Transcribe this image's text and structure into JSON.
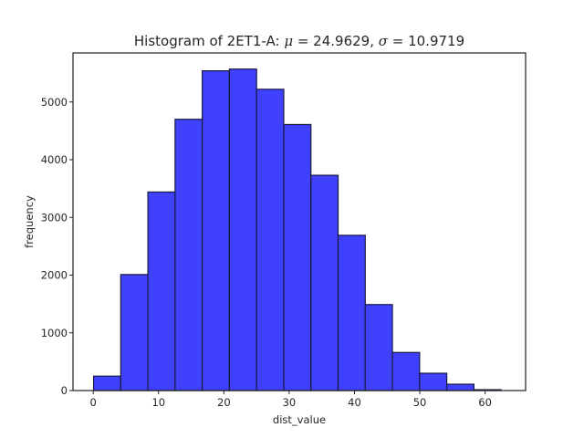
{
  "chart_data": {
    "type": "bar",
    "title": {
      "prefix": "Histogram of 2ET1-A: ",
      "mu_symbol": "μ",
      "mu_value": " = 24.9629, ",
      "sigma_symbol": "σ",
      "sigma_value": " = 10.9719"
    },
    "xlabel": "dist_value",
    "ylabel": "frequency",
    "xlim": [
      -3.1,
      66.2
    ],
    "ylim": [
      0,
      5850
    ],
    "xticks": [
      0,
      10,
      20,
      30,
      40,
      50,
      60
    ],
    "yticks": [
      0,
      1000,
      2000,
      3000,
      4000,
      5000
    ],
    "grid": false,
    "bar_color": "#4040ff",
    "edge_color": "#1a1a40",
    "bins": [
      {
        "x0": 0.05,
        "x1": 4.21,
        "count": 250
      },
      {
        "x0": 4.21,
        "x1": 8.37,
        "count": 2010
      },
      {
        "x0": 8.37,
        "x1": 12.53,
        "count": 3440
      },
      {
        "x0": 12.53,
        "x1": 16.69,
        "count": 4700
      },
      {
        "x0": 16.69,
        "x1": 20.85,
        "count": 5540
      },
      {
        "x0": 20.85,
        "x1": 25.01,
        "count": 5570
      },
      {
        "x0": 25.01,
        "x1": 29.17,
        "count": 5220
      },
      {
        "x0": 29.17,
        "x1": 33.33,
        "count": 4610
      },
      {
        "x0": 33.33,
        "x1": 37.49,
        "count": 3730
      },
      {
        "x0": 37.49,
        "x1": 41.65,
        "count": 2690
      },
      {
        "x0": 41.65,
        "x1": 45.81,
        "count": 1490
      },
      {
        "x0": 45.81,
        "x1": 49.97,
        "count": 660
      },
      {
        "x0": 49.97,
        "x1": 54.13,
        "count": 300
      },
      {
        "x0": 54.13,
        "x1": 58.29,
        "count": 110
      },
      {
        "x0": 58.29,
        "x1": 62.45,
        "count": 15
      }
    ]
  }
}
